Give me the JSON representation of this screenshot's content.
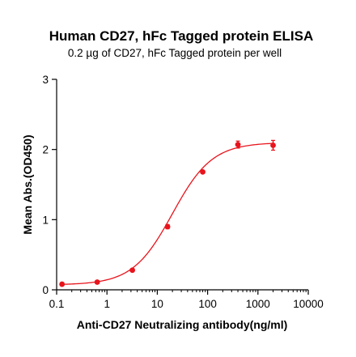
{
  "chart_data": {
    "type": "scatter",
    "title": "Human CD27, hFc Tagged protein ELISA",
    "subtitle": "0.2 µg of CD27, hFc Tagged protein per well",
    "xlabel": "Anti-CD27 Neutralizing antibody(ng/ml)",
    "ylabel": "Mean Abs.(OD450)",
    "x_scale": "log",
    "xlim": [
      0.1,
      10000
    ],
    "ylim": [
      0,
      3
    ],
    "x_ticks": [
      0.1,
      1,
      10,
      100,
      1000,
      10000
    ],
    "x_tick_labels": [
      "0.1",
      "1",
      "10",
      "100",
      "1000",
      "10000"
    ],
    "y_ticks": [
      0,
      1,
      2,
      3
    ],
    "y_tick_labels": [
      "0",
      "1",
      "2",
      "3"
    ],
    "grid": false,
    "series": [
      {
        "color": "#e8141c",
        "points": [
          {
            "x": 0.128,
            "y": 0.08,
            "err": 0.02
          },
          {
            "x": 0.64,
            "y": 0.11,
            "err": 0.02
          },
          {
            "x": 3.2,
            "y": 0.28,
            "err": 0.02
          },
          {
            "x": 16,
            "y": 0.9,
            "err": 0.03
          },
          {
            "x": 80,
            "y": 1.68,
            "err": 0.02
          },
          {
            "x": 400,
            "y": 2.07,
            "err": 0.05
          },
          {
            "x": 2000,
            "y": 2.06,
            "err": 0.07
          }
        ],
        "fit": {
          "model": "4PL",
          "bottom": 0.07,
          "top": 2.1,
          "ec50": 20,
          "hill": 1.1
        }
      }
    ]
  }
}
